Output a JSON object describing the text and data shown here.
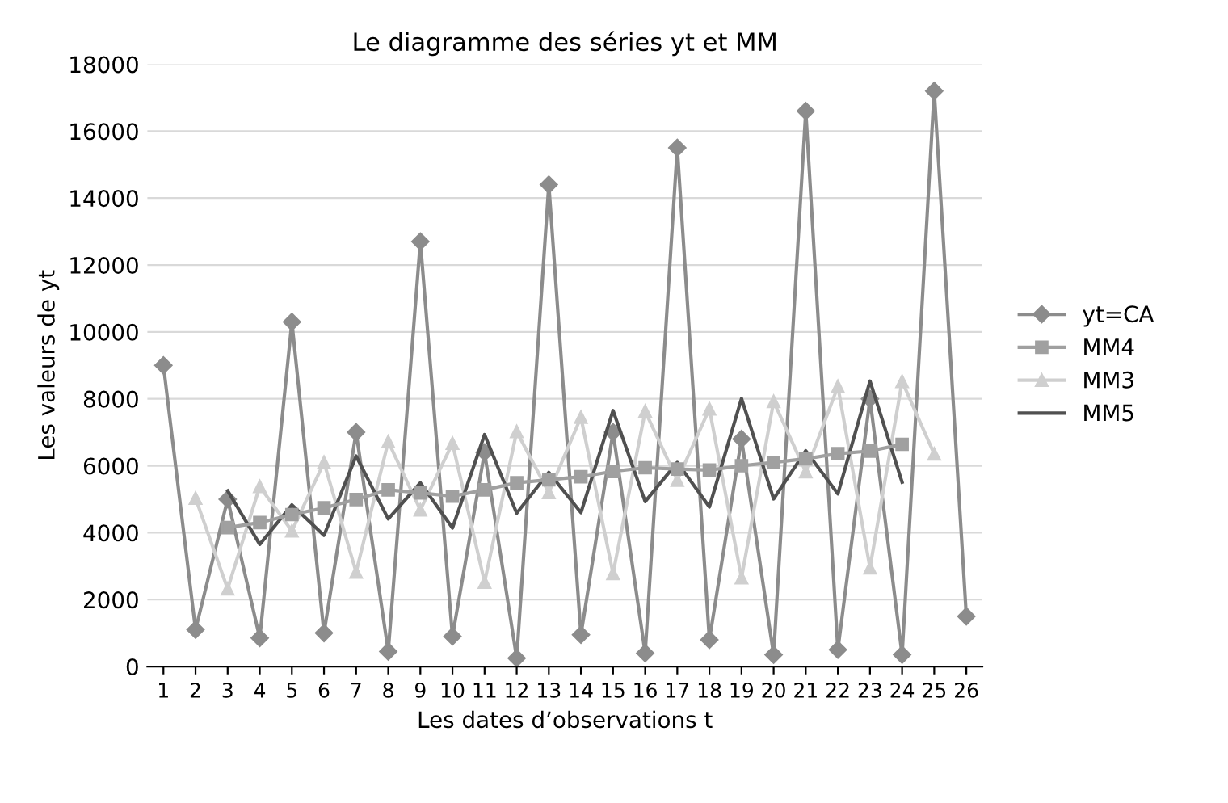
{
  "chart_data": {
    "type": "line",
    "title": "Le diagramme des séries yt et MM",
    "xlabel": "Les dates d’observations t",
    "ylabel": "Les valeurs de yt",
    "categories": [
      "1",
      "2",
      "3",
      "4",
      "5",
      "6",
      "7",
      "8",
      "9",
      "10",
      "11",
      "12",
      "13",
      "14",
      "15",
      "16",
      "17",
      "18",
      "19",
      "20",
      "21",
      "22",
      "23",
      "24",
      "25",
      "26"
    ],
    "series": [
      {
        "name": "yt=CA",
        "color": "#8c8c8c",
        "marker": "diamond",
        "values": [
          9000,
          1100,
          5000,
          850,
          10300,
          1000,
          7000,
          450,
          12700,
          900,
          6400,
          250,
          14400,
          950,
          7000,
          400,
          15500,
          800,
          6800,
          350,
          16600,
          500,
          8000,
          350,
          17200,
          1500
        ]
      },
      {
        "name": "MM4",
        "color": "#a0a0a0",
        "marker": "square",
        "values": [
          null,
          null,
          4150,
          4300,
          4540,
          4740,
          4990,
          5280,
          5190,
          5090,
          5280,
          5490,
          5580,
          5670,
          5830,
          5940,
          5900,
          5870,
          6000,
          6100,
          6210,
          6360,
          6440,
          6640,
          null,
          null
        ]
      },
      {
        "name": "MM3",
        "color": "#cfcfcf",
        "marker": "triangle",
        "values": [
          null,
          5030,
          2320,
          5380,
          4050,
          6100,
          2820,
          6720,
          4680,
          6670,
          2520,
          7020,
          5200,
          7450,
          2780,
          7630,
          5570,
          7700,
          2650,
          7920,
          5820,
          8370,
          2950,
          8520,
          6350,
          null
        ]
      },
      {
        "name": "MM5",
        "color": "#505050",
        "marker": "none",
        "values": [
          null,
          null,
          5250,
          3650,
          4830,
          3920,
          6290,
          4410,
          5490,
          4140,
          6930,
          4580,
          5800,
          4600,
          7650,
          4930,
          6100,
          4770,
          8010,
          5010,
          6450,
          5160,
          8530,
          5510,
          null,
          null
        ]
      }
    ],
    "ylim": [
      0,
      18000
    ],
    "yticks": [
      0,
      2000,
      4000,
      6000,
      8000,
      10000,
      12000,
      14000,
      16000,
      18000
    ],
    "grid": "y",
    "legend": "right",
    "line_style": "solid"
  }
}
